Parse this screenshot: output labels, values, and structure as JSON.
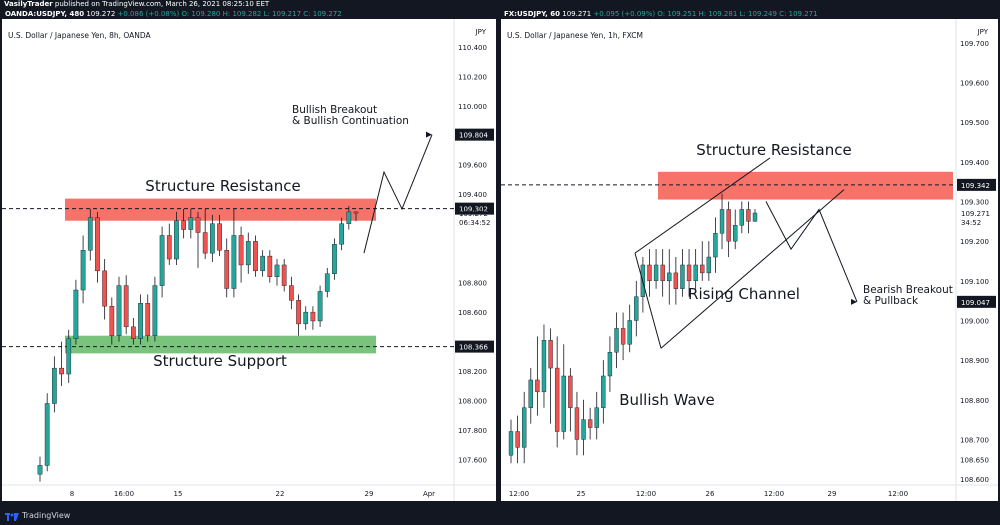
{
  "publish_line": {
    "author": "VasilyTrader",
    "text": "published on TradingView.com, March 26, 2021 08:25:10 EET"
  },
  "left_header": {
    "symbol": "OANDA:USDJPY, 480",
    "o": "109.272",
    "change": "+0.086 (+0.08%)",
    "ohlc": "O: 109.280  H: 109.282  L: 109.217  C: 109.272"
  },
  "right_header": {
    "symbol": "FX:USDJPY, 60",
    "o": "109.271",
    "change": "+0.095 (+0.09%)",
    "ohlc": "O: 109.251  H: 109.281  L: 109.249  C: 109.271"
  },
  "footer": {
    "brand": "TradingView"
  },
  "colors": {
    "up": "#26a69a",
    "down": "#ef5350",
    "resistance": "#f44336",
    "support": "#4caf50",
    "text": "#131722"
  },
  "chart_data": [
    {
      "type": "candlestick",
      "title": "U.S. Dollar / Japanese Yen, 8h, OANDA",
      "axis_unit": "JPY",
      "y_ticks": [
        "110.400",
        "110.200",
        "110.000",
        "109.600",
        "109.400",
        "108.800",
        "108.600",
        "108.200",
        "108.000",
        "107.800",
        "107.600"
      ],
      "ylim": [
        107.4,
        110.48
      ],
      "x_ticks": [
        "8",
        "16:00",
        "15",
        "22",
        "29",
        "Apr"
      ],
      "price_labels": [
        {
          "value": 109.804,
          "text": "109.804",
          "style": "black"
        },
        {
          "value": 109.302,
          "text": "109.302",
          "style": "black"
        },
        {
          "value": 108.366,
          "text": "108.366",
          "style": "black"
        }
      ],
      "last_price": {
        "value": 109.272,
        "text": "109.272",
        "countdown": "06:34:52"
      },
      "zones": [
        {
          "name": "Structure Resistance",
          "from": 109.22,
          "to": 109.37,
          "color": "#f44336"
        },
        {
          "name": "Structure Support",
          "from": 108.32,
          "to": 108.44,
          "color": "#4caf50"
        }
      ],
      "dashed_levels": [
        109.302,
        108.366
      ],
      "annotations": [
        "Structure Resistance",
        "Structure Support",
        "Bullish Breakout",
        "& Bullish Continuation"
      ],
      "candles": [
        [
          107.5,
          107.56,
          107.45,
          107.62
        ],
        [
          107.56,
          107.98,
          107.52,
          108.05
        ],
        [
          107.98,
          108.22,
          107.92,
          108.3
        ],
        [
          108.22,
          108.18,
          108.1,
          108.4
        ],
        [
          108.18,
          108.42,
          108.12,
          108.48
        ],
        [
          108.42,
          108.75,
          108.38,
          108.82
        ],
        [
          108.75,
          109.02,
          108.66,
          109.12
        ],
        [
          109.02,
          109.24,
          108.95,
          109.3
        ],
        [
          109.24,
          108.88,
          108.8,
          109.28
        ],
        [
          108.88,
          108.64,
          108.55,
          108.96
        ],
        [
          108.64,
          108.44,
          108.38,
          108.7
        ],
        [
          108.44,
          108.78,
          108.4,
          108.84
        ],
        [
          108.78,
          108.5,
          108.45,
          108.85
        ],
        [
          108.5,
          108.42,
          108.38,
          108.56
        ],
        [
          108.42,
          108.66,
          108.38,
          108.72
        ],
        [
          108.66,
          108.44,
          108.4,
          108.72
        ],
        [
          108.44,
          108.78,
          108.4,
          108.84
        ],
        [
          108.78,
          109.12,
          108.7,
          109.18
        ],
        [
          109.12,
          108.96,
          108.92,
          109.2
        ],
        [
          108.96,
          109.22,
          108.92,
          109.28
        ],
        [
          109.22,
          109.16,
          109.1,
          109.3
        ],
        [
          109.16,
          109.24,
          109.1,
          109.3
        ],
        [
          109.24,
          109.14,
          108.9,
          109.28
        ],
        [
          109.14,
          109.0,
          108.96,
          109.3
        ],
        [
          109.0,
          109.2,
          108.94,
          109.26
        ],
        [
          109.2,
          109.02,
          108.98,
          109.26
        ],
        [
          109.02,
          108.76,
          108.7,
          109.1
        ],
        [
          108.76,
          109.12,
          108.7,
          109.3
        ],
        [
          109.12,
          108.92,
          108.8,
          109.18
        ],
        [
          108.92,
          109.08,
          108.86,
          109.14
        ],
        [
          109.08,
          108.88,
          108.84,
          109.12
        ],
        [
          108.88,
          108.98,
          108.84,
          109.02
        ],
        [
          108.98,
          108.84,
          108.8,
          109.02
        ],
        [
          108.84,
          108.92,
          108.78,
          108.96
        ],
        [
          108.92,
          108.78,
          108.74,
          108.96
        ],
        [
          108.78,
          108.68,
          108.62,
          108.84
        ],
        [
          108.68,
          108.52,
          108.44,
          108.72
        ],
        [
          108.52,
          108.6,
          108.48,
          108.64
        ],
        [
          108.6,
          108.54,
          108.48,
          108.64
        ],
        [
          108.54,
          108.74,
          108.5,
          108.78
        ],
        [
          108.74,
          108.86,
          108.7,
          108.9
        ],
        [
          108.86,
          109.06,
          108.82,
          109.1
        ],
        [
          109.06,
          109.2,
          109.02,
          109.24
        ],
        [
          109.2,
          109.28,
          109.16,
          109.32
        ],
        [
          109.28,
          109.272,
          109.217,
          109.282
        ]
      ],
      "projection": [
        [
          109.0,
          109.55,
          109.3,
          109.804
        ]
      ]
    },
    {
      "type": "candlestick",
      "title": "U.S. Dollar / Japanese Yen, 1h, FXCM",
      "axis_unit": "JPY",
      "y_ticks": [
        "109.700",
        "109.600",
        "109.500",
        "109.400",
        "109.300",
        "109.200",
        "109.100",
        "109.000",
        "108.900",
        "108.800",
        "108.700",
        "108.650",
        "108.600"
      ],
      "ylim": [
        108.575,
        109.72
      ],
      "x_ticks": [
        "12:00",
        "25",
        "12:00",
        "26",
        "12:00",
        "29",
        "12:00"
      ],
      "price_labels": [
        {
          "value": 109.342,
          "text": "109.342",
          "style": "black"
        },
        {
          "value": 109.047,
          "text": "109.047",
          "style": "black"
        }
      ],
      "last_price": {
        "value": 109.271,
        "text": "109.271",
        "countdown": "34:52"
      },
      "zones": [
        {
          "name": "Structure Resistance",
          "from": 109.305,
          "to": 109.375,
          "color": "#f44336"
        }
      ],
      "dashed_levels": [
        109.342
      ],
      "annotations": [
        "Structure Resistance",
        "Rising Channel",
        "Bullish Wave",
        "Bearish Breakout",
        "& Pullback"
      ],
      "candles": [
        [
          108.66,
          108.72,
          108.64,
          108.75
        ],
        [
          108.72,
          108.68,
          108.64,
          108.76
        ],
        [
          108.68,
          108.78,
          108.64,
          108.82
        ],
        [
          108.78,
          108.85,
          108.74,
          108.88
        ],
        [
          108.85,
          108.82,
          108.76,
          108.96
        ],
        [
          108.82,
          108.95,
          108.78,
          108.99
        ],
        [
          108.95,
          108.88,
          108.74,
          108.98
        ],
        [
          108.88,
          108.72,
          108.68,
          108.96
        ],
        [
          108.72,
          108.86,
          108.7,
          108.94
        ],
        [
          108.86,
          108.78,
          108.72,
          108.88
        ],
        [
          108.78,
          108.7,
          108.66,
          108.82
        ],
        [
          108.7,
          108.75,
          108.66,
          108.8
        ],
        [
          108.75,
          108.73,
          108.7,
          108.78
        ],
        [
          108.73,
          108.78,
          108.7,
          108.82
        ],
        [
          108.78,
          108.86,
          108.74,
          108.9
        ],
        [
          108.86,
          108.92,
          108.82,
          108.96
        ],
        [
          108.92,
          108.98,
          108.88,
          109.02
        ],
        [
          108.98,
          108.94,
          108.9,
          109.02
        ],
        [
          108.94,
          109.0,
          108.92,
          109.04
        ],
        [
          109.0,
          109.06,
          108.96,
          109.1
        ],
        [
          109.06,
          109.14,
          109.02,
          109.16
        ],
        [
          109.14,
          109.1,
          109.06,
          109.18
        ],
        [
          109.1,
          109.14,
          109.08,
          109.18
        ],
        [
          109.14,
          109.1,
          109.06,
          109.18
        ],
        [
          109.1,
          109.12,
          109.04,
          109.18
        ],
        [
          109.12,
          109.08,
          109.04,
          109.16
        ],
        [
          109.08,
          109.14,
          109.06,
          109.18
        ],
        [
          109.14,
          109.1,
          109.06,
          109.18
        ],
        [
          109.1,
          109.14,
          109.08,
          109.18
        ],
        [
          109.14,
          109.12,
          109.1,
          109.2
        ],
        [
          109.12,
          109.16,
          109.1,
          109.2
        ],
        [
          109.16,
          109.22,
          109.12,
          109.26
        ],
        [
          109.22,
          109.28,
          109.18,
          109.32
        ],
        [
          109.28,
          109.2,
          109.16,
          109.3
        ],
        [
          109.2,
          109.24,
          109.18,
          109.28
        ],
        [
          109.24,
          109.28,
          109.22,
          109.3
        ],
        [
          109.28,
          109.25,
          109.22,
          109.3
        ],
        [
          109.25,
          109.271,
          109.249,
          109.281
        ]
      ],
      "projection": [
        [
          109.3,
          109.18,
          109.28,
          109.047
        ]
      ]
    }
  ]
}
